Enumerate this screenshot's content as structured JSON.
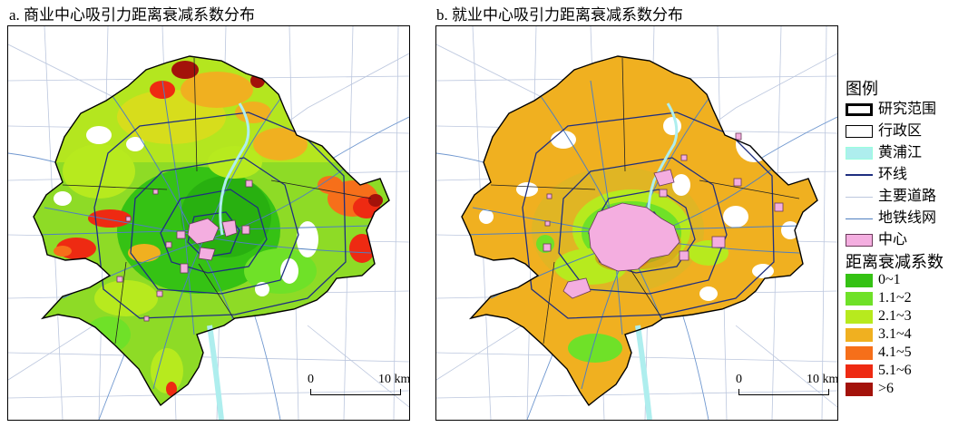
{
  "panels": [
    {
      "title": "a. 商业中心吸引力距离衰减系数分布"
    },
    {
      "title": "b. 就业中心吸引力距离衰减系数分布"
    }
  ],
  "scalebar": {
    "start": "0",
    "end": "10 km"
  },
  "legend": {
    "title": "图例",
    "items": [
      {
        "label": "研究范围",
        "symbol": "thick-outline",
        "color": "#000000"
      },
      {
        "label": "行政区",
        "symbol": "thin-outline",
        "color": "#000000"
      },
      {
        "label": "黄浦江",
        "symbol": "fill",
        "color": "#aeeeee"
      },
      {
        "label": "环线",
        "symbol": "line",
        "color": "#1f2f80"
      },
      {
        "label": "主要道路",
        "symbol": "line",
        "color": "#bcc7de"
      },
      {
        "label": "地铁线网",
        "symbol": "line",
        "color": "#4f7fc0"
      },
      {
        "label": "中心",
        "symbol": "fill",
        "color": "#f4aee0"
      }
    ],
    "class_title": "距离衰减系数",
    "classes": [
      {
        "label": "0~1",
        "color": "#35c214"
      },
      {
        "label": "1.1~2",
        "color": "#6fe128"
      },
      {
        "label": "2.1~3",
        "color": "#b7ea1e"
      },
      {
        "label": "3.1~4",
        "color": "#f0b020"
      },
      {
        "label": "4.1~5",
        "color": "#f66f1a"
      },
      {
        "label": "5.1~6",
        "color": "#ee2a12"
      },
      {
        "label": ">6",
        "color": "#a3120a"
      }
    ]
  }
}
